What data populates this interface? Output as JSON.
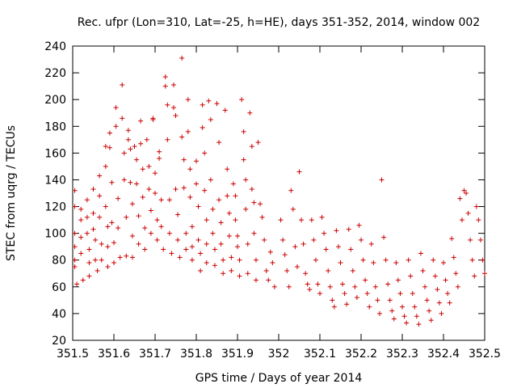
{
  "chart_data": {
    "type": "scatter",
    "title": "Rec. ufpr (Lon=310, Lat=-25, h=HE), days 351-352, 2014, window 002",
    "xlabel": "GPS time / Days of year 2014",
    "ylabel": "STEC from uqrg / TECUs",
    "xlim": [
      351.5,
      352.5
    ],
    "ylim": [
      20,
      240
    ],
    "xticks": [
      "351.5",
      "351.6",
      "351.7",
      "351.8",
      "351.9",
      "352",
      "352.1",
      "352.2",
      "352.3",
      "352.4",
      "352.5"
    ],
    "xtick_values": [
      351.5,
      351.6,
      351.7,
      351.8,
      351.9,
      352.0,
      352.1,
      352.2,
      352.3,
      352.4,
      352.5
    ],
    "yticks": [
      "20",
      "40",
      "60",
      "80",
      "100",
      "120",
      "140",
      "160",
      "180",
      "200",
      "220",
      "240"
    ],
    "ytick_values": [
      20,
      40,
      60,
      80,
      100,
      120,
      140,
      160,
      180,
      200,
      220,
      240
    ],
    "grid": false,
    "marker": "plus",
    "color": "#cc0000",
    "points": [
      [
        351.505,
        132
      ],
      [
        351.505,
        120
      ],
      [
        351.505,
        100
      ],
      [
        351.505,
        90
      ],
      [
        351.505,
        80
      ],
      [
        351.505,
        75
      ],
      [
        351.51,
        62
      ],
      [
        351.52,
        118
      ],
      [
        351.52,
        110
      ],
      [
        351.52,
        97
      ],
      [
        351.52,
        85
      ],
      [
        351.525,
        65
      ],
      [
        351.535,
        125
      ],
      [
        351.535,
        112
      ],
      [
        351.535,
        100
      ],
      [
        351.54,
        88
      ],
      [
        351.54,
        78
      ],
      [
        351.54,
        68
      ],
      [
        351.55,
        133
      ],
      [
        351.55,
        115
      ],
      [
        351.55,
        103
      ],
      [
        351.555,
        95
      ],
      [
        351.555,
        80
      ],
      [
        351.56,
        72
      ],
      [
        351.565,
        143
      ],
      [
        351.565,
        128
      ],
      [
        351.565,
        112
      ],
      [
        351.57,
        92
      ],
      [
        351.57,
        80
      ],
      [
        351.58,
        165
      ],
      [
        351.58,
        150
      ],
      [
        351.58,
        120
      ],
      [
        351.585,
        105
      ],
      [
        351.585,
        90
      ],
      [
        351.585,
        75
      ],
      [
        351.59,
        175
      ],
      [
        351.59,
        164
      ],
      [
        351.595,
        138
      ],
      [
        351.595,
        108
      ],
      [
        351.6,
        93
      ],
      [
        351.6,
        78
      ],
      [
        351.605,
        194
      ],
      [
        351.605,
        180
      ],
      [
        351.61,
        126
      ],
      [
        351.61,
        104
      ],
      [
        351.615,
        82
      ],
      [
        351.62,
        211
      ],
      [
        351.62,
        186
      ],
      [
        351.625,
        160
      ],
      [
        351.625,
        140
      ],
      [
        351.63,
        112
      ],
      [
        351.63,
        83
      ],
      [
        351.635,
        177
      ],
      [
        351.635,
        170
      ],
      [
        351.64,
        163
      ],
      [
        351.64,
        138
      ],
      [
        351.645,
        122
      ],
      [
        351.645,
        98
      ],
      [
        351.645,
        82
      ],
      [
        351.65,
        165
      ],
      [
        351.655,
        155
      ],
      [
        351.655,
        137
      ],
      [
        351.66,
        113
      ],
      [
        351.66,
        92
      ],
      [
        351.665,
        184
      ],
      [
        351.665,
        167
      ],
      [
        351.67,
        148
      ],
      [
        351.67,
        127
      ],
      [
        351.675,
        104
      ],
      [
        351.675,
        88
      ],
      [
        351.68,
        170
      ],
      [
        351.685,
        150
      ],
      [
        351.685,
        133
      ],
      [
        351.69,
        117
      ],
      [
        351.69,
        100
      ],
      [
        351.695,
        186
      ],
      [
        351.695,
        185
      ],
      [
        351.7,
        145
      ],
      [
        351.7,
        130
      ],
      [
        351.705,
        110
      ],
      [
        351.705,
        95
      ],
      [
        351.71,
        161
      ],
      [
        351.71,
        156
      ],
      [
        351.715,
        125
      ],
      [
        351.715,
        105
      ],
      [
        351.72,
        88
      ],
      [
        351.725,
        217
      ],
      [
        351.725,
        210
      ],
      [
        351.73,
        196
      ],
      [
        351.73,
        170
      ],
      [
        351.735,
        125
      ],
      [
        351.735,
        100
      ],
      [
        351.74,
        85
      ],
      [
        351.745,
        211
      ],
      [
        351.745,
        194
      ],
      [
        351.75,
        188
      ],
      [
        351.75,
        133
      ],
      [
        351.755,
        114
      ],
      [
        351.755,
        95
      ],
      [
        351.76,
        82
      ],
      [
        351.765,
        231
      ],
      [
        351.765,
        172
      ],
      [
        351.77,
        155
      ],
      [
        351.77,
        134
      ],
      [
        351.775,
        100
      ],
      [
        351.775,
        88
      ],
      [
        351.78,
        200
      ],
      [
        351.78,
        176
      ],
      [
        351.785,
        148
      ],
      [
        351.785,
        127
      ],
      [
        351.79,
        105
      ],
      [
        351.79,
        90
      ],
      [
        351.79,
        80
      ],
      [
        351.8,
        154
      ],
      [
        351.8,
        137
      ],
      [
        351.805,
        120
      ],
      [
        351.805,
        95
      ],
      [
        351.81,
        85
      ],
      [
        351.81,
        72
      ],
      [
        351.815,
        196
      ],
      [
        351.815,
        179
      ],
      [
        351.82,
        160
      ],
      [
        351.82,
        132
      ],
      [
        351.825,
        110
      ],
      [
        351.825,
        92
      ],
      [
        351.825,
        78
      ],
      [
        351.83,
        199
      ],
      [
        351.835,
        185
      ],
      [
        351.835,
        140
      ],
      [
        351.84,
        118
      ],
      [
        351.84,
        100
      ],
      [
        351.845,
        88
      ],
      [
        351.845,
        76
      ],
      [
        351.85,
        197
      ],
      [
        351.855,
        168
      ],
      [
        351.855,
        125
      ],
      [
        351.86,
        108
      ],
      [
        351.86,
        92
      ],
      [
        351.865,
        80
      ],
      [
        351.865,
        70
      ],
      [
        351.87,
        192
      ],
      [
        351.875,
        148
      ],
      [
        351.875,
        128
      ],
      [
        351.88,
        115
      ],
      [
        351.88,
        98
      ],
      [
        351.885,
        82
      ],
      [
        351.885,
        72
      ],
      [
        351.89,
        137
      ],
      [
        351.895,
        128
      ],
      [
        351.895,
        110
      ],
      [
        351.9,
        98
      ],
      [
        351.9,
        90
      ],
      [
        351.905,
        80
      ],
      [
        351.905,
        68
      ],
      [
        351.91,
        200
      ],
      [
        351.915,
        176
      ],
      [
        351.915,
        155
      ],
      [
        351.92,
        140
      ],
      [
        351.92,
        118
      ],
      [
        351.925,
        92
      ],
      [
        351.925,
        70
      ],
      [
        351.93,
        190
      ],
      [
        351.935,
        165
      ],
      [
        351.935,
        133
      ],
      [
        351.94,
        123
      ],
      [
        351.94,
        100
      ],
      [
        351.945,
        80
      ],
      [
        351.945,
        65
      ],
      [
        351.95,
        168
      ],
      [
        351.955,
        122
      ],
      [
        351.96,
        112
      ],
      [
        351.965,
        95
      ],
      [
        351.97,
        72
      ],
      [
        351.975,
        65
      ],
      [
        351.98,
        86
      ],
      [
        351.985,
        78
      ],
      [
        351.99,
        60
      ],
      [
        352.005,
        110
      ],
      [
        352.01,
        95
      ],
      [
        352.015,
        84
      ],
      [
        352.02,
        72
      ],
      [
        352.025,
        60
      ],
      [
        352.03,
        132
      ],
      [
        352.035,
        118
      ],
      [
        352.04,
        90
      ],
      [
        352.045,
        75
      ],
      [
        352.05,
        146
      ],
      [
        352.055,
        110
      ],
      [
        352.06,
        92
      ],
      [
        352.065,
        70
      ],
      [
        352.07,
        62
      ],
      [
        352.075,
        58
      ],
      [
        352.08,
        110
      ],
      [
        352.085,
        95
      ],
      [
        352.09,
        80
      ],
      [
        352.095,
        62
      ],
      [
        352.1,
        55
      ],
      [
        352.105,
        112
      ],
      [
        352.11,
        100
      ],
      [
        352.115,
        88
      ],
      [
        352.12,
        72
      ],
      [
        352.125,
        60
      ],
      [
        352.13,
        50
      ],
      [
        352.135,
        45
      ],
      [
        352.14,
        102
      ],
      [
        352.145,
        90
      ],
      [
        352.15,
        78
      ],
      [
        352.155,
        62
      ],
      [
        352.16,
        55
      ],
      [
        352.165,
        47
      ],
      [
        352.17,
        103
      ],
      [
        352.175,
        88
      ],
      [
        352.18,
        72
      ],
      [
        352.185,
        60
      ],
      [
        352.19,
        52
      ],
      [
        352.195,
        106
      ],
      [
        352.2,
        95
      ],
      [
        352.205,
        80
      ],
      [
        352.21,
        65
      ],
      [
        352.215,
        55
      ],
      [
        352.22,
        45
      ],
      [
        352.225,
        92
      ],
      [
        352.23,
        78
      ],
      [
        352.235,
        60
      ],
      [
        352.24,
        50
      ],
      [
        352.245,
        40
      ],
      [
        352.25,
        140
      ],
      [
        352.255,
        97
      ],
      [
        352.26,
        80
      ],
      [
        352.265,
        62
      ],
      [
        352.27,
        50
      ],
      [
        352.275,
        42
      ],
      [
        352.28,
        36
      ],
      [
        352.285,
        78
      ],
      [
        352.29,
        65
      ],
      [
        352.295,
        55
      ],
      [
        352.3,
        45
      ],
      [
        352.305,
        38
      ],
      [
        352.31,
        33
      ],
      [
        352.315,
        80
      ],
      [
        352.32,
        68
      ],
      [
        352.325,
        55
      ],
      [
        352.33,
        45
      ],
      [
        352.335,
        38
      ],
      [
        352.34,
        32
      ],
      [
        352.345,
        85
      ],
      [
        352.35,
        72
      ],
      [
        352.355,
        60
      ],
      [
        352.36,
        50
      ],
      [
        352.365,
        42
      ],
      [
        352.37,
        35
      ],
      [
        352.375,
        80
      ],
      [
        352.38,
        68
      ],
      [
        352.385,
        58
      ],
      [
        352.39,
        48
      ],
      [
        352.395,
        40
      ],
      [
        352.4,
        78
      ],
      [
        352.405,
        65
      ],
      [
        352.41,
        55
      ],
      [
        352.415,
        48
      ],
      [
        352.42,
        96
      ],
      [
        352.425,
        82
      ],
      [
        352.43,
        70
      ],
      [
        352.435,
        60
      ],
      [
        352.44,
        126
      ],
      [
        352.445,
        110
      ],
      [
        352.45,
        132
      ],
      [
        352.455,
        130
      ],
      [
        352.46,
        115
      ],
      [
        352.465,
        95
      ],
      [
        352.47,
        80
      ],
      [
        352.475,
        68
      ],
      [
        352.48,
        120
      ],
      [
        352.485,
        110
      ],
      [
        352.49,
        95
      ],
      [
        352.495,
        80
      ],
      [
        352.5,
        70
      ]
    ]
  }
}
